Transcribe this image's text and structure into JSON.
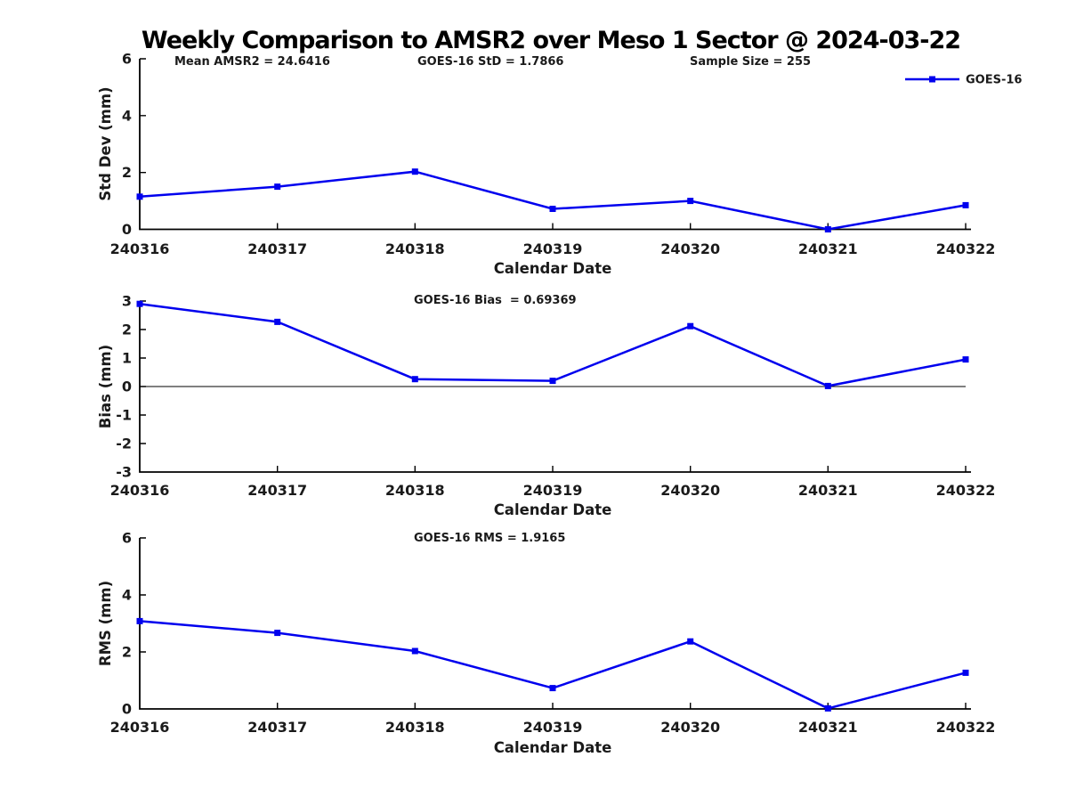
{
  "title": "Weekly Comparison to AMSR2 over Meso 1 Sector @ 2024-03-22",
  "colors": {
    "line": "#0000EE",
    "axis": "#000000",
    "text": "#1A1A1A",
    "background": "#FFFFFF"
  },
  "chart_data": [
    {
      "type": "line",
      "subplot": "Std Dev",
      "ylabel": "Std Dev (mm)",
      "xlabel": "Calendar Date",
      "ylim": [
        0,
        6
      ],
      "yticks": [
        "0",
        "2",
        "4",
        "6"
      ],
      "categories": [
        "240316",
        "240317",
        "240318",
        "240319",
        "240320",
        "240321",
        "240322"
      ],
      "annotations": [
        {
          "text": "Mean AMSR2 = 24.6416"
        },
        {
          "text": "GOES-16 StD = 1.7866"
        },
        {
          "text": "Sample Size = 255"
        }
      ],
      "legend": {
        "position": "top-right",
        "label": "GOES-16"
      },
      "grid": false,
      "series": [
        {
          "name": "GOES-16",
          "marker": "square",
          "values": [
            1.15,
            1.5,
            2.03,
            0.72,
            1.0,
            0.0,
            0.85
          ]
        }
      ]
    },
    {
      "type": "line",
      "subplot": "Bias",
      "ylabel": "Bias (mm)",
      "xlabel": "Calendar Date",
      "ylim": [
        -3,
        3
      ],
      "yticks": [
        "-3",
        "-2",
        "-1",
        "0",
        "1",
        "2",
        "3"
      ],
      "categories": [
        "240316",
        "240317",
        "240318",
        "240319",
        "240320",
        "240321",
        "240322"
      ],
      "annotations": [
        {
          "text": "GOES-16 Bias  = 0.69369"
        }
      ],
      "zero_line": true,
      "grid": false,
      "series": [
        {
          "name": "GOES-16",
          "marker": "square",
          "values": [
            2.9,
            2.27,
            0.26,
            0.2,
            2.12,
            0.02,
            0.95
          ]
        }
      ]
    },
    {
      "type": "line",
      "subplot": "RMS",
      "ylabel": "RMS (mm)",
      "xlabel": "Calendar Date",
      "ylim": [
        0,
        6
      ],
      "yticks": [
        "0",
        "2",
        "4",
        "6"
      ],
      "categories": [
        "240316",
        "240317",
        "240318",
        "240319",
        "240320",
        "240321",
        "240322"
      ],
      "annotations": [
        {
          "text": "GOES-16 RMS = 1.9165"
        }
      ],
      "grid": false,
      "series": [
        {
          "name": "GOES-16",
          "marker": "square",
          "values": [
            3.08,
            2.67,
            2.03,
            0.73,
            2.37,
            0.02,
            1.27
          ]
        }
      ]
    }
  ]
}
